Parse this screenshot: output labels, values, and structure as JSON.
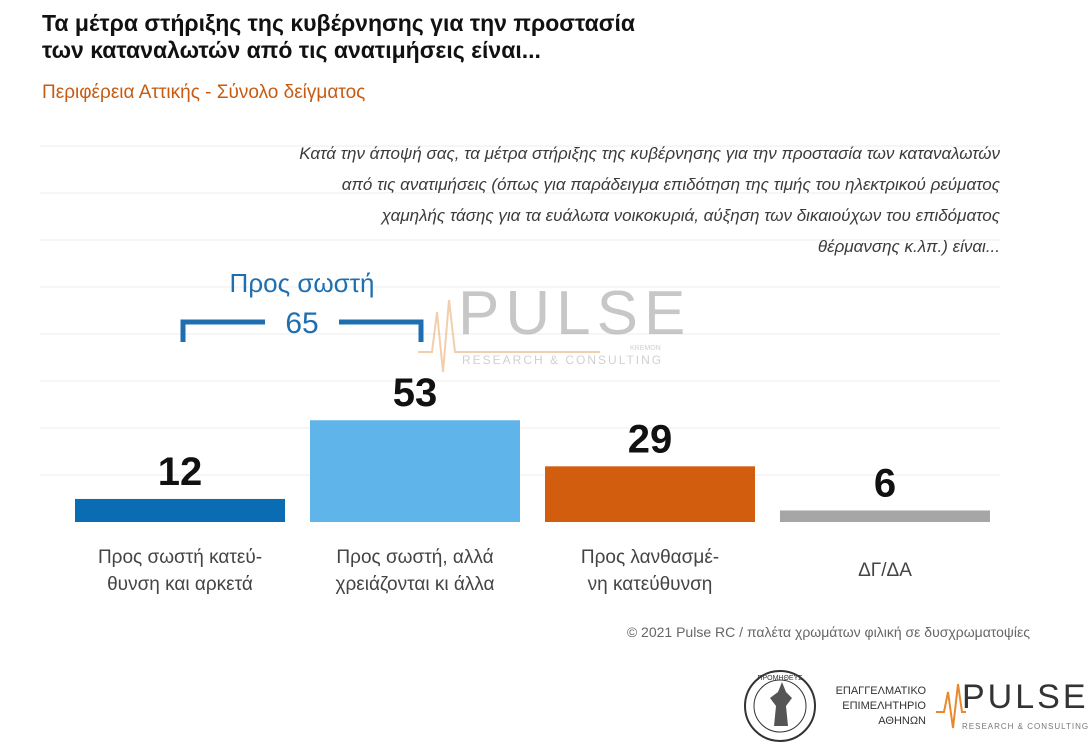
{
  "title_line1": "Τα μέτρα στήριξης της κυβέρνησης για την προστασία",
  "title_line2": "των καταναλωτών από τις ανατιμήσεις είναι...",
  "subtitle": "Περιφέρεια Αττικής - Σύνολο δείγματος",
  "question_lines": [
    "Κατά την άποψή σας, τα μέτρα στήριξης της κυβέρνησης για την προστασία των καταναλωτών",
    "από τις ανατιμήσεις (όπως για παράδειγμα επιδότηση της τιμής του ηλεκτρικού ρεύματος",
    "χαμηλής τάσης για τα ευάλωτα νοικοκυριά, αύξηση των δικαιούχων του επιδόματος",
    "θέρμανσης κ.λπ.) είναι..."
  ],
  "watermark": {
    "word": "PULSE",
    "sub": "RESEARCH & CONSULTING",
    "tag": "KREMON"
  },
  "grouping": {
    "label": "Προς σωστή",
    "value": 65,
    "color": "#1f6fb0"
  },
  "chart_data": {
    "type": "bar",
    "categories": [
      "Προς σωστή κατεύθυνση και αρκετά",
      "Προς σωστή, αλλά χρειάζονται κι άλλα",
      "Προς λανθασμένη κατεύθυνση",
      "ΔΓ/ΔΑ"
    ],
    "category_label_lines": [
      [
        "Προς σωστή κατεύ-",
        "θυνση και αρκετά"
      ],
      [
        "Προς σωστή, αλλά",
        "χρειάζονται κι άλλα"
      ],
      [
        "Προς λανθασμέ-",
        "νη κατεύθυνση"
      ],
      [
        "ΔΓ/ΔΑ"
      ]
    ],
    "values": [
      12,
      53,
      29,
      6
    ],
    "colors": [
      "#0a6db3",
      "#5fb4ea",
      "#d35d0e",
      "#a6a6a6"
    ],
    "ylim": [
      0,
      100
    ],
    "grid": true
  },
  "footer": "© 2021 Pulse RC  /  παλέτα χρωμάτων φιλική σε δυσχρωματοψίες",
  "chamber": {
    "lines": [
      "ΕΠΑΓΓΕΛΜΑΤΙΚΟ",
      "ΕΠΙΜΕΛΗΤΗΡΙΟ",
      "ΑΘΗΝΩΝ"
    ],
    "seal_text": "ΠΡΟΜΗΘΕΥΣ"
  },
  "pulse_logo": {
    "word": "PULSE",
    "sub": "RESEARCH & CONSULTING"
  }
}
